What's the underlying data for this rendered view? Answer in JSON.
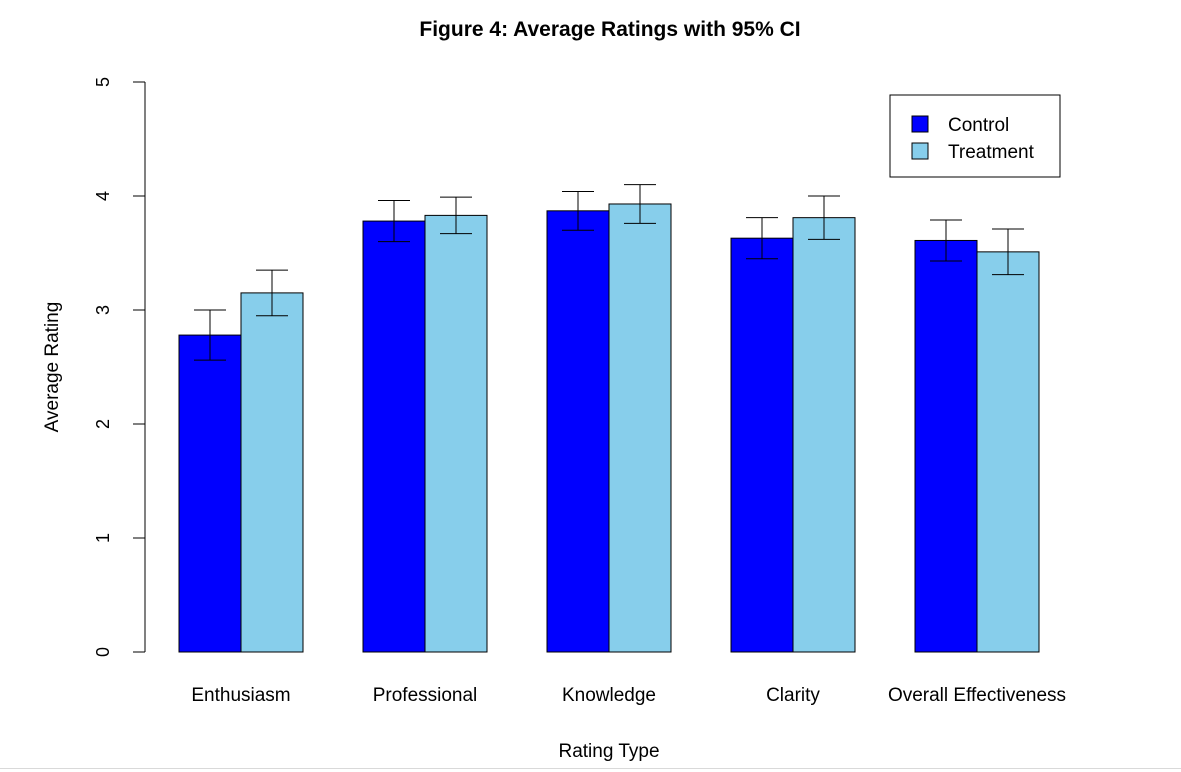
{
  "chart_data": {
    "type": "bar",
    "title": "Figure 4: Average Ratings with 95% CI",
    "xlabel": "Rating Type",
    "ylabel": "Average Rating",
    "ylim": [
      0,
      5
    ],
    "yticks": [
      "0",
      "1",
      "2",
      "3",
      "4",
      "5"
    ],
    "categories": [
      "Enthusiasm",
      "Professional",
      "Knowledge",
      "Clarity",
      "Overall Effectiveness"
    ],
    "series": [
      {
        "name": "Control",
        "color": "#0000ff",
        "values": [
          2.78,
          3.78,
          3.87,
          3.63,
          3.61
        ],
        "ci_low": [
          2.56,
          3.6,
          3.7,
          3.45,
          3.43
        ],
        "ci_high": [
          3.0,
          3.96,
          4.04,
          3.81,
          3.79
        ]
      },
      {
        "name": "Treatment",
        "color": "#87ceeb",
        "values": [
          3.15,
          3.83,
          3.93,
          3.81,
          3.51
        ],
        "ci_low": [
          2.95,
          3.67,
          3.76,
          3.62,
          3.31
        ],
        "ci_high": [
          3.35,
          3.99,
          4.1,
          4.0,
          3.71
        ]
      }
    ],
    "legend": {
      "position": "top-right",
      "entries": [
        "Control",
        "Treatment"
      ]
    },
    "grid": false
  }
}
